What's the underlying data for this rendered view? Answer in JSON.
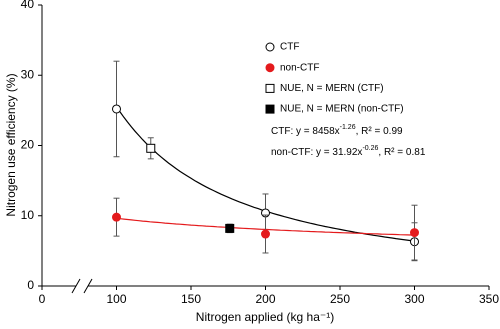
{
  "chart_data": {
    "type": "scatter",
    "x_label": "Nitrogen applied (kg ha⁻¹)",
    "y_label": "Nitrogen use efficiency (%)",
    "xlim": [
      0,
      350
    ],
    "xbreak": [
      0,
      50
    ],
    "xticks": [
      0,
      100,
      150,
      200,
      250,
      300,
      350
    ],
    "ylim": [
      0,
      40
    ],
    "yticks": [
      0,
      10,
      20,
      30,
      40
    ],
    "grid": false,
    "legend_position": "upper right",
    "series": [
      {
        "name": "CTF",
        "marker": "circle",
        "color": "#000000",
        "fill": "#ffffff",
        "x": [
          100,
          200,
          300
        ],
        "values": [
          25.2,
          10.4,
          6.3
        ],
        "errors": [
          6.8,
          2.7,
          2.7
        ]
      },
      {
        "name": "non-CTF",
        "marker": "circle",
        "color": "#e41a1c",
        "fill": "#e41a1c",
        "x": [
          100,
          200,
          300
        ],
        "values": [
          9.8,
          7.4,
          7.6
        ],
        "errors": [
          2.7,
          2.7,
          3.9
        ]
      },
      {
        "name": "NUE, N = MERN (CTF)",
        "marker": "square",
        "color": "#000000",
        "fill": "#ffffff",
        "x": [
          123
        ],
        "values": [
          19.6
        ],
        "errors": [
          1.5
        ]
      },
      {
        "name": "NUE, N = MERN (non-CTF)",
        "marker": "square",
        "color": "#000000",
        "fill": "#000000",
        "x": [
          176
        ],
        "values": [
          8.2
        ],
        "errors": [
          0.6
        ]
      }
    ],
    "fits": [
      {
        "series": 0,
        "a": 8458,
        "b": -1.26,
        "color": "#000000",
        "text": "CTF: y = 8458x",
        "exponent": "-1.26",
        "rest": ", R² = 0.99"
      },
      {
        "series": 1,
        "a": 31.92,
        "b": -0.26,
        "color": "#e41a1c",
        "text": "non-CTF: y = 31.92x",
        "exponent": "-0.26",
        "rest": ", R² = 0.81"
      }
    ]
  }
}
